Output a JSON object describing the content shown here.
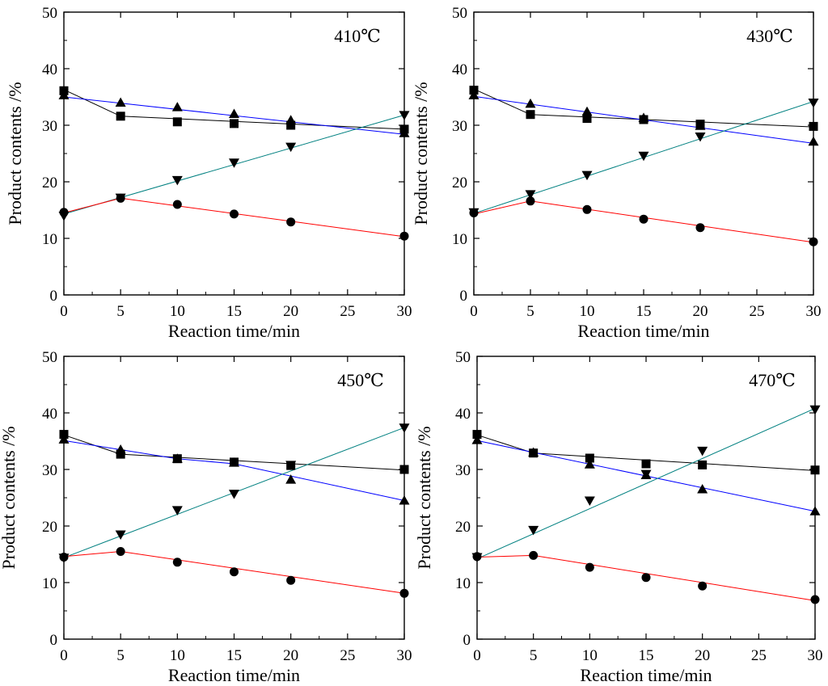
{
  "series_styles": {
    "square": {
      "line_color": "#000000",
      "marker": "square"
    },
    "up_triangle": {
      "line_color": "#0000ff",
      "marker": "triangle-up"
    },
    "down_triangle": {
      "line_color": "#008080",
      "marker": "triangle-down"
    },
    "circle": {
      "line_color": "#ff0000",
      "marker": "circle"
    }
  },
  "chart_data": [
    {
      "type": "line",
      "title": "410℃",
      "xlabel": "Reaction time/min",
      "ylabel": "Product contents  /%",
      "xlim": [
        0,
        30
      ],
      "ylim": [
        0,
        50
      ],
      "xticks": [
        0,
        5,
        10,
        15,
        20,
        25,
        30
      ],
      "yticks": [
        0,
        10,
        20,
        30,
        40,
        50
      ],
      "x": [
        0,
        5,
        10,
        15,
        20,
        30
      ],
      "series": [
        {
          "name": "square",
          "marker": "square",
          "values": [
            36.1,
            31.6,
            30.6,
            30.3,
            30.0,
            29.3
          ]
        },
        {
          "name": "up_triangle",
          "marker": "triangle-up",
          "values": [
            35.3,
            34.0,
            33.2,
            32.0,
            30.9,
            28.6
          ]
        },
        {
          "name": "down_triangle",
          "marker": "triangle-down",
          "values": [
            14.0,
            17.2,
            20.3,
            23.4,
            26.2,
            31.8
          ]
        },
        {
          "name": "circle",
          "marker": "circle",
          "values": [
            14.6,
            17.1,
            16.0,
            14.3,
            12.9,
            10.4
          ]
        }
      ],
      "fit_lines": [
        {
          "name": "square",
          "points": [
            [
              0,
              36.3
            ],
            [
              5,
              31.6
            ],
            [
              30,
              29.3
            ]
          ]
        },
        {
          "name": "up_triangle",
          "points": [
            [
              0,
              35.0
            ],
            [
              30,
              28.4
            ]
          ]
        },
        {
          "name": "down_triangle",
          "points": [
            [
              0,
              14.3
            ],
            [
              30,
              31.8
            ]
          ]
        },
        {
          "name": "circle",
          "points": [
            [
              0,
              14.5
            ],
            [
              5,
              17.1
            ],
            [
              30,
              10.3
            ]
          ]
        }
      ]
    },
    {
      "type": "line",
      "title": "430℃",
      "xlabel": "Reaction time/min",
      "ylabel": "Product contents  /%",
      "xlim": [
        0,
        30
      ],
      "ylim": [
        0,
        50
      ],
      "xticks": [
        0,
        5,
        10,
        15,
        20,
        25,
        30
      ],
      "yticks": [
        0,
        10,
        20,
        30,
        40,
        50
      ],
      "x": [
        0,
        5,
        10,
        15,
        20,
        30
      ],
      "series": [
        {
          "name": "square",
          "marker": "square",
          "values": [
            36.2,
            31.9,
            31.2,
            31.0,
            30.2,
            29.8
          ]
        },
        {
          "name": "up_triangle",
          "marker": "triangle-up",
          "values": [
            35.3,
            33.8,
            32.4,
            31.3,
            29.9,
            27.1
          ]
        },
        {
          "name": "down_triangle",
          "marker": "triangle-down",
          "values": [
            14.6,
            17.8,
            21.2,
            24.6,
            28.0,
            34.0
          ]
        },
        {
          "name": "circle",
          "marker": "circle",
          "values": [
            14.5,
            16.6,
            15.1,
            13.4,
            11.9,
            9.4
          ]
        }
      ],
      "fit_lines": [
        {
          "name": "square",
          "points": [
            [
              0,
              36.4
            ],
            [
              5,
              31.9
            ],
            [
              30,
              29.7
            ]
          ]
        },
        {
          "name": "up_triangle",
          "points": [
            [
              0,
              35.1
            ],
            [
              30,
              26.8
            ]
          ]
        },
        {
          "name": "down_triangle",
          "points": [
            [
              0,
              14.4
            ],
            [
              30,
              34.2
            ]
          ]
        },
        {
          "name": "circle",
          "points": [
            [
              0,
              14.3
            ],
            [
              5,
              16.6
            ],
            [
              30,
              9.3
            ]
          ]
        }
      ]
    },
    {
      "type": "line",
      "title": "450℃",
      "xlabel": "Reaction time/min",
      "ylabel": "Product contents  /%",
      "xlim": [
        0,
        30
      ],
      "ylim": [
        0,
        50
      ],
      "xticks": [
        0,
        5,
        10,
        15,
        20,
        25,
        30
      ],
      "yticks": [
        0,
        10,
        20,
        30,
        40,
        50
      ],
      "x": [
        0,
        5,
        10,
        15,
        20,
        30
      ],
      "series": [
        {
          "name": "square",
          "marker": "square",
          "values": [
            36.2,
            32.7,
            31.9,
            31.3,
            30.7,
            30.0
          ]
        },
        {
          "name": "up_triangle",
          "marker": "triangle-up",
          "values": [
            35.3,
            33.5,
            31.9,
            31.2,
            28.2,
            24.5
          ]
        },
        {
          "name": "down_triangle",
          "marker": "triangle-down",
          "values": [
            14.4,
            18.5,
            22.8,
            25.7,
            30.8,
            37.4
          ]
        },
        {
          "name": "circle",
          "marker": "circle",
          "values": [
            14.5,
            15.5,
            13.6,
            11.9,
            10.4,
            8.1
          ]
        }
      ],
      "fit_lines": [
        {
          "name": "square",
          "points": [
            [
              0,
              36.1
            ],
            [
              5,
              32.7
            ],
            [
              30,
              29.9
            ]
          ]
        },
        {
          "name": "up_triangle",
          "points": [
            [
              0,
              35.1
            ],
            [
              10,
              31.9
            ],
            [
              15,
              31.0
            ],
            [
              30,
              24.5
            ]
          ]
        },
        {
          "name": "down_triangle",
          "points": [
            [
              0,
              14.4
            ],
            [
              30,
              37.4
            ]
          ]
        },
        {
          "name": "circle",
          "points": [
            [
              0,
              14.6
            ],
            [
              5,
              15.5
            ],
            [
              30,
              8.1
            ]
          ]
        }
      ]
    },
    {
      "type": "line",
      "title": "470℃",
      "xlabel": "Reaction time/min",
      "ylabel": "Product contents  /%",
      "xlim": [
        0,
        30
      ],
      "ylim": [
        0,
        50
      ],
      "xticks": [
        0,
        5,
        10,
        15,
        20,
        25,
        30
      ],
      "yticks": [
        0,
        10,
        20,
        30,
        40,
        50
      ],
      "x": [
        0,
        5,
        10,
        15,
        20,
        30
      ],
      "series": [
        {
          "name": "square",
          "marker": "square",
          "values": [
            36.2,
            32.9,
            32.0,
            31.0,
            30.8,
            29.9
          ]
        },
        {
          "name": "up_triangle",
          "marker": "triangle-up",
          "values": [
            35.2,
            33.0,
            30.9,
            29.0,
            26.5,
            22.6
          ]
        },
        {
          "name": "down_triangle",
          "marker": "triangle-down",
          "values": [
            14.5,
            19.3,
            24.5,
            29.2,
            33.3,
            40.6
          ]
        },
        {
          "name": "circle",
          "marker": "circle",
          "values": [
            14.6,
            14.8,
            12.7,
            10.9,
            9.4,
            7.0
          ]
        }
      ],
      "fit_lines": [
        {
          "name": "square",
          "points": [
            [
              0,
              36.1
            ],
            [
              5,
              32.9
            ],
            [
              30,
              29.8
            ]
          ]
        },
        {
          "name": "up_triangle",
          "points": [
            [
              0,
              35.1
            ],
            [
              30,
              22.6
            ]
          ]
        },
        {
          "name": "down_triangle",
          "points": [
            [
              0,
              14.2
            ],
            [
              30,
              40.8
            ]
          ]
        },
        {
          "name": "circle",
          "points": [
            [
              0,
              14.5
            ],
            [
              5,
              14.8
            ],
            [
              30,
              6.8
            ]
          ]
        }
      ]
    }
  ]
}
